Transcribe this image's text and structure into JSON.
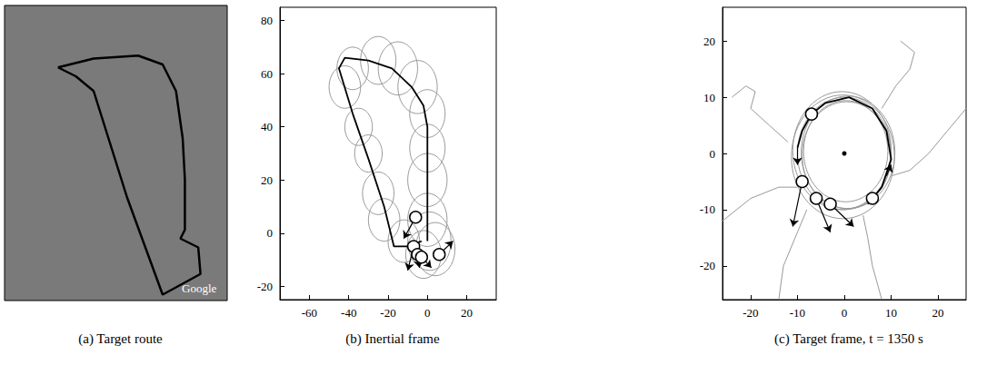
{
  "chart_data": [
    {
      "type": "map",
      "title": "(a) Target route",
      "annotation": "Google",
      "xlim": [
        0,
        100
      ],
      "ylim": [
        0,
        100
      ],
      "tick_labels": false,
      "grid": false,
      "series": [
        {
          "type": "line",
          "color": "#000000",
          "points": [
            [
              24,
              79
            ],
            [
              40,
              82
            ],
            [
              60,
              83
            ],
            [
              71,
              80
            ],
            [
              77,
              71
            ],
            [
              80,
              55
            ],
            [
              81,
              41
            ],
            [
              81,
              24
            ],
            [
              79,
              21
            ],
            [
              87,
              18
            ],
            [
              88,
              9
            ],
            [
              71,
              2
            ],
            [
              55,
              35
            ],
            [
              40,
              71
            ],
            [
              32,
              76
            ],
            [
              24,
              79
            ]
          ]
        }
      ]
    },
    {
      "type": "line",
      "title": "(b) Inertial frame",
      "xlim": [
        -75,
        35
      ],
      "ylim": [
        -25,
        85
      ],
      "xticks": [
        -60,
        -40,
        -20,
        0,
        20
      ],
      "yticks": [
        -20,
        0,
        20,
        40,
        60,
        80
      ],
      "grid": false,
      "series": [
        {
          "type": "circles",
          "color": "#999999",
          "circles": [
            [
              0,
              5,
              10
            ],
            [
              1,
              -3,
              11
            ],
            [
              0,
              20,
              10
            ],
            [
              0,
              32,
              9
            ],
            [
              0,
              45,
              9
            ],
            [
              -5,
              55,
              10
            ],
            [
              -15,
              62,
              10
            ],
            [
              -25,
              65,
              9
            ],
            [
              -38,
              62,
              8
            ],
            [
              -42,
              55,
              8
            ],
            [
              -35,
              40,
              7
            ],
            [
              -30,
              30,
              7
            ],
            [
              -25,
              15,
              8
            ],
            [
              -22,
              5,
              8
            ],
            [
              -12,
              -3,
              8
            ],
            [
              4,
              -6,
              10
            ],
            [
              -2,
              -8,
              9
            ]
          ]
        },
        {
          "type": "line",
          "color": "#000000",
          "points": [
            [
              0,
              -3
            ],
            [
              0,
              10
            ],
            [
              0,
              25
            ],
            [
              0,
              40
            ],
            [
              -2,
              48
            ],
            [
              -8,
              55
            ],
            [
              -18,
              62
            ],
            [
              -30,
              65
            ],
            [
              -42,
              66
            ],
            [
              -45,
              62
            ],
            [
              -38,
              45
            ],
            [
              -30,
              28
            ],
            [
              -22,
              10
            ],
            [
              -17,
              -5
            ],
            [
              -10,
              -5
            ],
            [
              -3,
              -3
            ]
          ]
        },
        {
          "type": "arrows",
          "color": "#000000",
          "arrows": [
            [
              -6,
              6,
              -12,
              -2
            ],
            [
              -7,
              -5,
              -10,
              -14
            ],
            [
              -5,
              -8,
              -4,
              -13
            ],
            [
              -3,
              -9,
              2,
              -13
            ],
            [
              6,
              -8,
              13,
              -3
            ]
          ]
        },
        {
          "type": "scatter",
          "marker": "circle",
          "color": "#ffffff",
          "points": [
            [
              -6,
              6
            ],
            [
              -7,
              -5
            ],
            [
              -5,
              -8
            ],
            [
              -3,
              -9
            ],
            [
              6,
              -8
            ]
          ]
        }
      ]
    },
    {
      "type": "line",
      "title": "(c) Target frame, t = 1350 s",
      "xlim": [
        -26,
        26
      ],
      "ylim": [
        -26,
        26
      ],
      "xticks": [
        -20,
        -10,
        0,
        10,
        20
      ],
      "yticks": [
        -20,
        -10,
        0,
        10,
        20
      ],
      "grid": false,
      "series": [
        {
          "type": "line",
          "color": "#999999",
          "points": [
            [
              -24,
              10
            ],
            [
              -21,
              12
            ],
            [
              -19,
              11
            ],
            [
              -20,
              8
            ],
            [
              -16,
              5
            ],
            [
              -12,
              2
            ]
          ]
        },
        {
          "type": "line",
          "color": "#999999",
          "points": [
            [
              -26,
              -12
            ],
            [
              -20,
              -8
            ],
            [
              -14,
              -6
            ],
            [
              -10,
              -6
            ]
          ]
        },
        {
          "type": "line",
          "color": "#999999",
          "points": [
            [
              12,
              20
            ],
            [
              15,
              18
            ],
            [
              14,
              15
            ],
            [
              11,
              12
            ],
            [
              8,
              8
            ]
          ]
        },
        {
          "type": "line",
          "color": "#999999",
          "points": [
            [
              26,
              8
            ],
            [
              22,
              4
            ],
            [
              18,
              0
            ],
            [
              14,
              -3
            ],
            [
              10,
              -4
            ]
          ]
        },
        {
          "type": "line",
          "color": "#999999",
          "points": [
            [
              8,
              -26
            ],
            [
              6,
              -20
            ],
            [
              5,
              -15
            ],
            [
              4,
              -11
            ]
          ]
        },
        {
          "type": "line",
          "color": "#999999",
          "points": [
            [
              -14,
              -26
            ],
            [
              -13,
              -20
            ],
            [
              -10,
              -14
            ],
            [
              -8,
              -10
            ]
          ]
        },
        {
          "type": "circles",
          "color": "#999999",
          "circles": [
            [
              0,
              0,
              10
            ],
            [
              0.5,
              -0.3,
              9.5
            ],
            [
              -0.5,
              0.5,
              10.5
            ],
            [
              0.3,
              0.4,
              9
            ],
            [
              -0.3,
              -0.6,
              11
            ],
            [
              0.8,
              0.2,
              10
            ]
          ]
        },
        {
          "type": "line",
          "color": "#000000",
          "points": [
            [
              5,
              -9
            ],
            [
              8,
              -6
            ],
            [
              10,
              -1
            ],
            [
              9,
              4
            ],
            [
              6,
              8
            ],
            [
              1,
              10
            ],
            [
              -4,
              9
            ],
            [
              -7,
              7
            ],
            [
              -9,
              4
            ],
            [
              -10,
              1
            ]
          ]
        },
        {
          "type": "arrows",
          "color": "#000000",
          "arrows": [
            [
              9,
              -4,
              10,
              -2
            ],
            [
              -10,
              1,
              -10,
              -2
            ],
            [
              -9,
              -5,
              -11,
              -13
            ],
            [
              -6,
              -8,
              -3,
              -14
            ],
            [
              -3,
              -9,
              2,
              -13
            ]
          ]
        },
        {
          "type": "scatter",
          "marker": "dot",
          "color": "#000000",
          "points": [
            [
              0,
              0
            ]
          ]
        },
        {
          "type": "scatter",
          "marker": "circle",
          "color": "#ffffff",
          "points": [
            [
              -7,
              7
            ],
            [
              -9,
              -5
            ],
            [
              -6,
              -8
            ],
            [
              -3,
              -9
            ],
            [
              6,
              -8
            ]
          ]
        }
      ]
    }
  ]
}
